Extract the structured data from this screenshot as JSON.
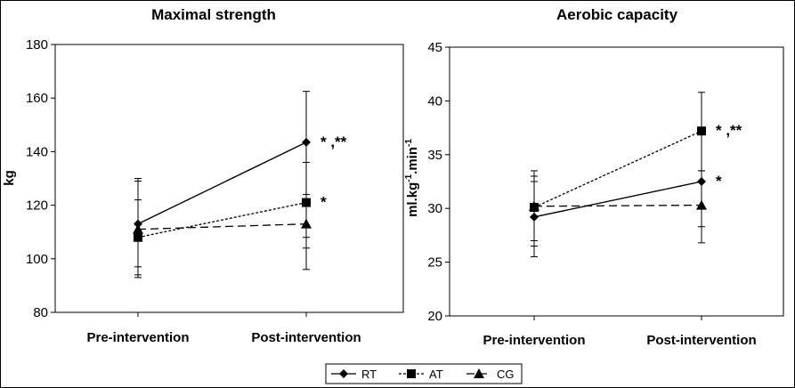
{
  "chart_data": [
    {
      "type": "line",
      "title": "Maximal strength",
      "ylabel": "kg",
      "ylim": [
        80,
        180
      ],
      "yticks": [
        80,
        100,
        120,
        140,
        160,
        180
      ],
      "categories": [
        "Pre-intervention",
        "Post-intervention"
      ],
      "series": [
        {
          "name": "RT",
          "values": [
            113,
            143.5
          ],
          "err_low": [
            93,
            96
          ],
          "err_high": [
            130,
            162.5
          ]
        },
        {
          "name": "AT",
          "values": [
            108,
            121
          ],
          "err_low": [
            94,
            108
          ],
          "err_high": [
            122,
            136
          ]
        },
        {
          "name": "CG",
          "values": [
            111,
            113
          ],
          "err_low": [
            97,
            104
          ],
          "err_high": [
            129,
            124
          ]
        }
      ],
      "annotations": [
        {
          "text": "* ,**",
          "series": "RT",
          "category": "Post-intervention"
        },
        {
          "text": "*",
          "series": "AT",
          "category": "Post-intervention"
        }
      ]
    },
    {
      "type": "line",
      "title": "Aerobic capacity",
      "ylabel": "ml.kg-1.min-1",
      "ylim": [
        20,
        45
      ],
      "yticks": [
        20,
        25,
        30,
        35,
        40,
        45
      ],
      "categories": [
        "Pre-intervention",
        "Post-intervention"
      ],
      "series": [
        {
          "name": "RT",
          "values": [
            29.2,
            32.5
          ],
          "err_low": [
            25.5,
            26.8
          ],
          "err_high": [
            32.5,
            37.5
          ]
        },
        {
          "name": "AT",
          "values": [
            30.1,
            37.2
          ],
          "err_low": [
            26.5,
            33.5
          ],
          "err_high": [
            33.5,
            40.8
          ]
        },
        {
          "name": "CG",
          "values": [
            30.2,
            30.3
          ],
          "err_low": [
            27.0,
            28.3
          ],
          "err_high": [
            33.0,
            33.5
          ]
        }
      ],
      "annotations": [
        {
          "text": "* ,**",
          "series": "AT",
          "category": "Post-intervention"
        },
        {
          "text": "*",
          "series": "RT",
          "category": "Post-intervention"
        }
      ]
    }
  ],
  "legend": {
    "position": "bottom-center",
    "items": [
      {
        "label": "RT",
        "marker": "diamond",
        "dash": "solid"
      },
      {
        "label": "AT",
        "marker": "square",
        "dash": "dotted"
      },
      {
        "label": "CG",
        "marker": "triangle",
        "dash": "dashed"
      }
    ]
  },
  "colors": {
    "line": "#000000",
    "background": "#ffffff"
  }
}
